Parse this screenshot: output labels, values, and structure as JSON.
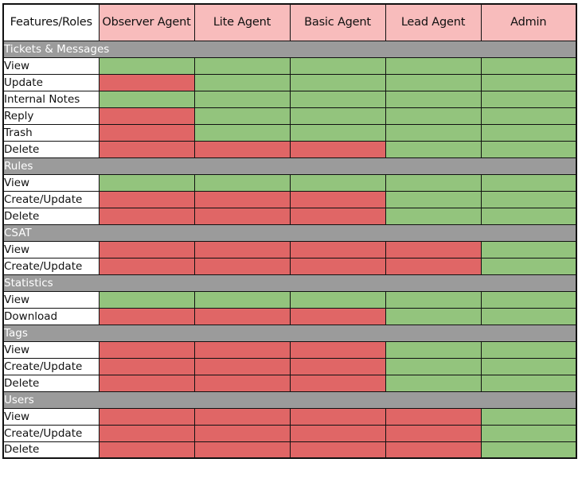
{
  "table": {
    "header": {
      "corner_label": "Features/Roles",
      "roles": [
        "Observer Agent",
        "Lite Agent",
        "Basic Agent",
        "Lead Agent",
        "Admin"
      ]
    },
    "legend_colors": {
      "header_role_bg": "#f8bcbc",
      "section_bg": "#9b9b9b",
      "allowed": "#93c47d",
      "denied": "#e06666"
    },
    "sections": [
      {
        "title": "Tickets & Messages",
        "rows": [
          {
            "feature": "View",
            "permissions": [
              true,
              true,
              true,
              true,
              true
            ]
          },
          {
            "feature": "Update",
            "permissions": [
              false,
              true,
              true,
              true,
              true
            ]
          },
          {
            "feature": "Internal Notes",
            "permissions": [
              true,
              true,
              true,
              true,
              true
            ]
          },
          {
            "feature": "Reply",
            "permissions": [
              false,
              true,
              true,
              true,
              true
            ]
          },
          {
            "feature": "Trash",
            "permissions": [
              false,
              true,
              true,
              true,
              true
            ]
          },
          {
            "feature": "Delete",
            "permissions": [
              false,
              false,
              false,
              true,
              true
            ]
          }
        ]
      },
      {
        "title": "Rules",
        "rows": [
          {
            "feature": "View",
            "permissions": [
              true,
              true,
              true,
              true,
              true
            ]
          },
          {
            "feature": "Create/Update",
            "permissions": [
              false,
              false,
              false,
              true,
              true
            ]
          },
          {
            "feature": "Delete",
            "permissions": [
              false,
              false,
              false,
              true,
              true
            ]
          }
        ]
      },
      {
        "title": "CSAT",
        "rows": [
          {
            "feature": "View",
            "permissions": [
              false,
              false,
              false,
              false,
              true
            ]
          },
          {
            "feature": "Create/Update",
            "permissions": [
              false,
              false,
              false,
              false,
              true
            ]
          }
        ]
      },
      {
        "title": "Statistics",
        "rows": [
          {
            "feature": "View",
            "permissions": [
              true,
              true,
              true,
              true,
              true
            ]
          },
          {
            "feature": "Download",
            "permissions": [
              false,
              false,
              false,
              true,
              true
            ]
          }
        ]
      },
      {
        "title": "Tags",
        "rows": [
          {
            "feature": "View",
            "permissions": [
              false,
              false,
              false,
              true,
              true
            ]
          },
          {
            "feature": "Create/Update",
            "permissions": [
              false,
              false,
              false,
              true,
              true
            ]
          },
          {
            "feature": "Delete",
            "permissions": [
              false,
              false,
              false,
              true,
              true
            ]
          }
        ]
      },
      {
        "title": "Users",
        "rows": [
          {
            "feature": "View",
            "permissions": [
              false,
              false,
              false,
              false,
              true
            ]
          },
          {
            "feature": "Create/Update",
            "permissions": [
              false,
              false,
              false,
              false,
              true
            ]
          },
          {
            "feature": "Delete",
            "permissions": [
              false,
              false,
              false,
              false,
              true
            ]
          }
        ]
      }
    ]
  }
}
